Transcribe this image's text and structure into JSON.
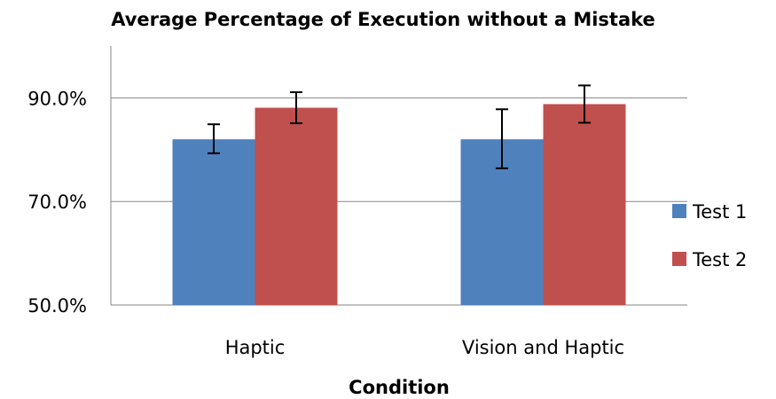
{
  "chart_data": {
    "type": "bar",
    "title": "Average Percentage of Execution without a Mistake",
    "xlabel": "Condition",
    "ylabel": "",
    "categories": [
      "Haptic",
      "Vision and Haptic"
    ],
    "ylim": [
      50,
      100
    ],
    "yticks": [
      50,
      70,
      90
    ],
    "ytick_labels": [
      "50.0%",
      "70.0%",
      "90.0%"
    ],
    "grid": true,
    "legend_position": "right",
    "series": [
      {
        "name": "Test 1",
        "color": "#4f81bd",
        "values": [
          82.0,
          82.0
        ],
        "error_low": [
          79.3,
          76.4
        ],
        "error_high": [
          84.9,
          87.8
        ]
      },
      {
        "name": "Test 2",
        "color": "#c0504d",
        "values": [
          88.1,
          88.8
        ],
        "error_low": [
          85.1,
          85.2
        ],
        "error_high": [
          91.1,
          92.4
        ]
      }
    ]
  }
}
